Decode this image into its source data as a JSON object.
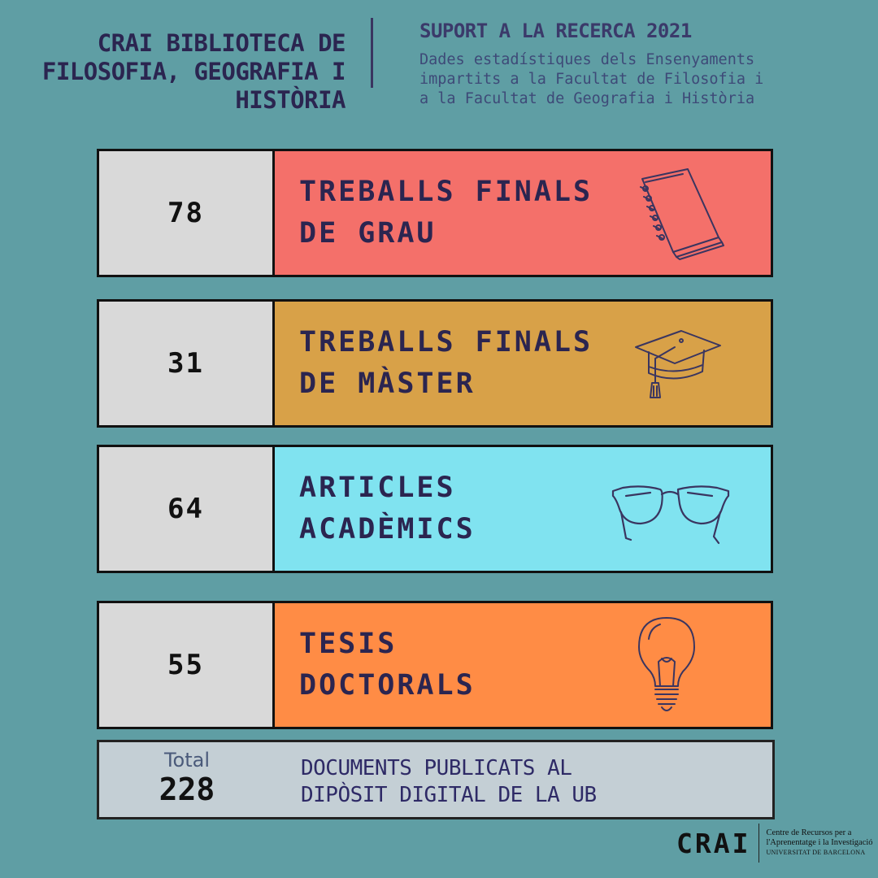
{
  "header": {
    "title_lines": [
      "CRAI BIBLIOTECA DE",
      "FILOSOFIA, GEOGRAFIA I",
      "HISTÒRIA"
    ],
    "right_title": "SUPORT A LA RECERCA 2021",
    "right_subtitle": "Dades estadístiques dels Ensenyaments\nimpartits a la Facultat de Filosofia i\na la Facultat de Geografia i Història"
  },
  "rows": [
    {
      "count": "78",
      "label": "TREBALLS FINALS\nDE GRAU",
      "color": "#f4706a",
      "icon": "notebook-icon"
    },
    {
      "count": "31",
      "label": "TREBALLS FINALS\nDE MÀSTER",
      "color": "#d8a148",
      "icon": "graduation-cap-icon"
    },
    {
      "count": "64",
      "label": "ARTICLES\nACADÈMICS",
      "color": "#80e3f0",
      "icon": "glasses-icon"
    },
    {
      "count": "55",
      "label": "TESIS\nDOCTORALS",
      "color": "#ff8c45",
      "icon": "lightbulb-icon"
    }
  ],
  "total": {
    "label": "Total",
    "value": "228",
    "description": "DOCUMENTS PUBLICATS AL\nDIPÒSIT DIGITAL DE LA UB"
  },
  "footer": {
    "logo": "CRAI",
    "line1": "Centre de Recursos per a",
    "line2": "l'Aprenentatge i la Investigació",
    "line3": "UNIVERSITAT DE BARCELONA"
  }
}
